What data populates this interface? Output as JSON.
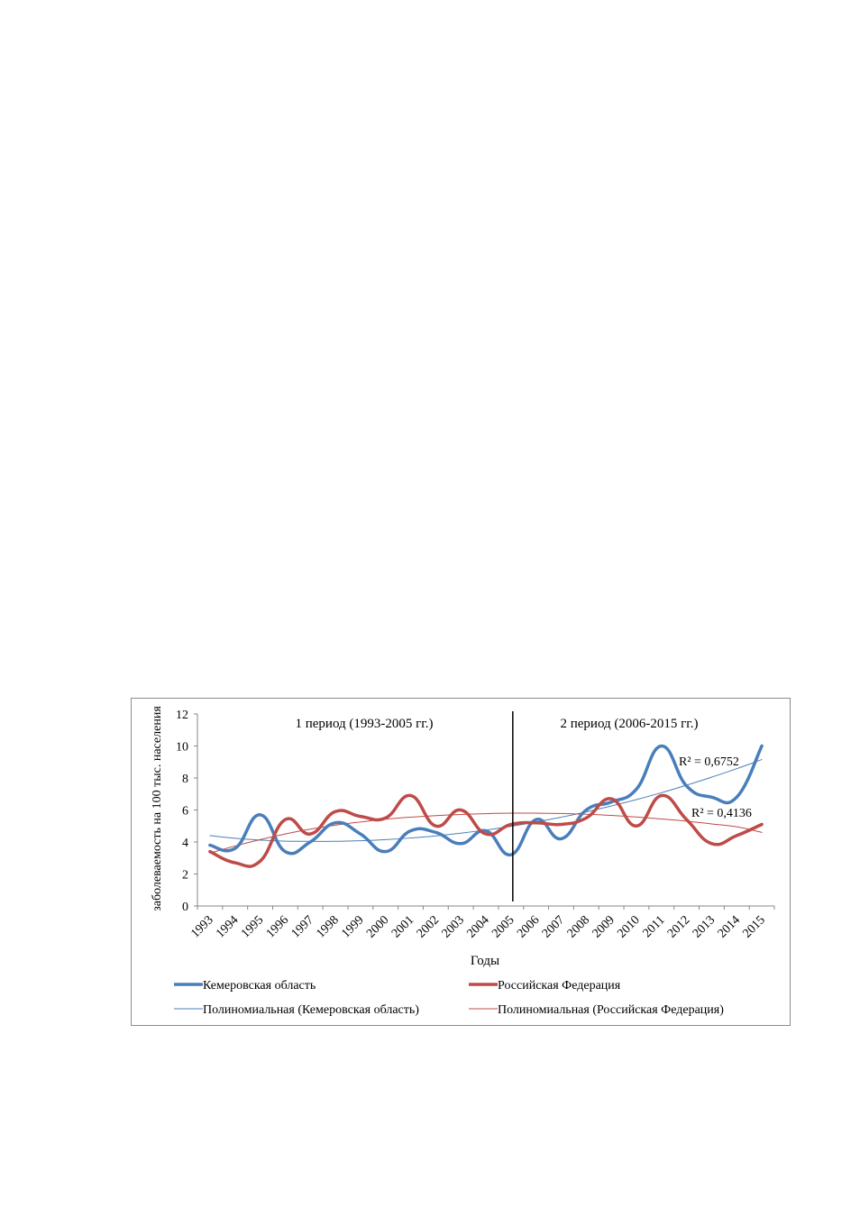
{
  "chart_data": {
    "type": "line",
    "xlabel": "Годы",
    "ylabel": "заболеваемость на 100 тыс. населения",
    "ylim": [
      0,
      12
    ],
    "yticks": [
      0,
      2,
      4,
      6,
      8,
      10,
      12
    ],
    "categories": [
      "1993",
      "1994",
      "1995",
      "1996",
      "1997",
      "1998",
      "1999",
      "2000",
      "2001",
      "2002",
      "2003",
      "2004",
      "2005",
      "2006",
      "2007",
      "2008",
      "2009",
      "2010",
      "2011",
      "2012",
      "2013",
      "2014",
      "2015"
    ],
    "series": [
      {
        "name": "Кемеровская область",
        "color": "#4a7ebb",
        "values": [
          3.8,
          3.6,
          5.7,
          3.4,
          4.0,
          5.2,
          4.5,
          3.4,
          4.7,
          4.6,
          3.9,
          4.7,
          3.2,
          5.4,
          4.2,
          6.0,
          6.5,
          7.3,
          10.0,
          7.5,
          6.8,
          6.8,
          10.0
        ]
      },
      {
        "name": "Российская Федерация",
        "color": "#be4b48",
        "values": [
          3.4,
          2.7,
          2.8,
          5.4,
          4.5,
          5.9,
          5.6,
          5.5,
          6.9,
          5.0,
          6.0,
          4.5,
          5.1,
          5.2,
          5.1,
          5.5,
          6.7,
          5.0,
          6.9,
          5.4,
          3.9,
          4.4,
          5.1
        ]
      },
      {
        "name": "Полиномиальная (Кемеровская область)",
        "color": "#4a7ebb",
        "trend": "polynomial",
        "values": [
          4.4,
          4.23,
          4.12,
          4.05,
          4.04,
          4.04,
          4.08,
          4.15,
          4.25,
          4.38,
          4.55,
          4.75,
          4.98,
          5.25,
          5.55,
          5.88,
          6.25,
          6.65,
          7.08,
          7.55,
          8.05,
          8.58,
          9.15
        ]
      },
      {
        "name": "Полиномиальная (Российская Федерация)",
        "color": "#be4b48",
        "trend": "polynomial",
        "values": [
          3.3,
          3.75,
          4.15,
          4.5,
          4.8,
          5.05,
          5.25,
          5.42,
          5.55,
          5.65,
          5.72,
          5.77,
          5.8,
          5.8,
          5.78,
          5.73,
          5.66,
          5.56,
          5.44,
          5.3,
          5.13,
          4.95,
          4.6
        ]
      }
    ],
    "r_squared": [
      "R² = 0,6752",
      "R² = 0,4136"
    ],
    "annotations": [
      "1 период (1993-2005  гг.)",
      "2 период (2006-2015  гг.)"
    ],
    "divider_after_category": "2005",
    "grid": false,
    "legend_position": "bottom"
  }
}
